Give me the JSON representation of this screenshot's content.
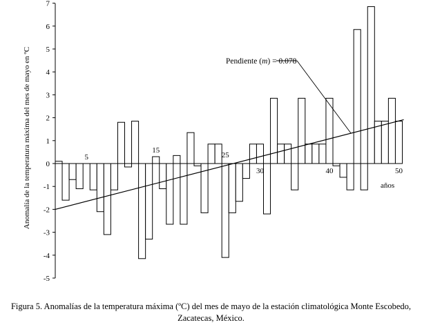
{
  "chart_data": {
    "type": "bar",
    "ylabel": "Anomalía de la temperatura máxima del mes de mayo en ºC",
    "xlabel": "años",
    "ylim": [
      -5,
      7
    ],
    "yticks": [
      7,
      6,
      5,
      4,
      3,
      2,
      1,
      0,
      -1,
      -2,
      -3,
      -4,
      -5
    ],
    "xtick_labels": [
      {
        "value": 5,
        "label": "5"
      },
      {
        "value": 15,
        "label": "15"
      },
      {
        "value": 25,
        "label": "25"
      },
      {
        "value": 30,
        "label": "30"
      },
      {
        "value": 40,
        "label": "40"
      },
      {
        "value": 50,
        "label": "50"
      }
    ],
    "x": [
      1,
      2,
      3,
      4,
      5,
      6,
      7,
      8,
      9,
      10,
      11,
      12,
      13,
      14,
      15,
      16,
      17,
      18,
      19,
      20,
      21,
      22,
      23,
      24,
      25,
      26,
      27,
      28,
      29,
      30,
      31,
      32,
      33,
      34,
      35,
      36,
      37,
      38,
      39,
      40,
      41,
      42,
      43,
      44,
      45,
      46,
      47,
      48,
      49,
      50
    ],
    "values": [
      0.1,
      -1.6,
      -0.7,
      -1.1,
      0,
      -1.15,
      -2.1,
      -3.1,
      -1.15,
      1.8,
      -0.15,
      1.85,
      -4.15,
      -3.3,
      0.3,
      -1.1,
      -2.65,
      0.35,
      -2.65,
      1.35,
      -0.1,
      -2.15,
      0.85,
      0.85,
      -4.1,
      -2.15,
      -1.65,
      -0.65,
      0.85,
      0.85,
      -2.2,
      2.85,
      0.85,
      0.85,
      -1.15,
      2.85,
      0.85,
      0.85,
      0.85,
      2.85,
      -0.1,
      -0.6,
      -1.15,
      5.85,
      -1.15,
      6.85,
      1.85,
      1.85,
      2.85,
      1.85
    ],
    "trend": {
      "label": "Pendiente (m) = 0.078",
      "label_prefix": "Pendiente (",
      "label_var": "m",
      "label_suffix": ") = 0.078",
      "slope": 0.078,
      "intercept": -2.0
    },
    "caption": "Figura 5. Anomalías de la temperatura máxima (ºC) del mes de mayo de la estación climatológica Monte Escobedo, Zacatecas, México.",
    "grid": false,
    "legend": "none"
  }
}
